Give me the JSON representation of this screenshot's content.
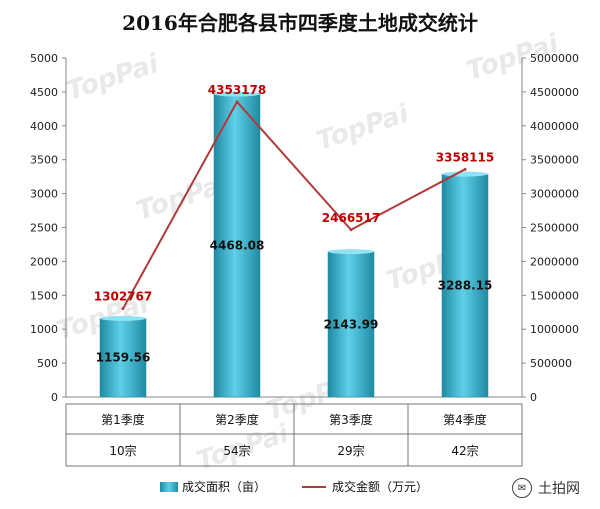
{
  "chart_data": {
    "type": "bar",
    "title": "2016年合肥各县市四季度土地成交统计",
    "categories": [
      "第1季度",
      "第2季度",
      "第3季度",
      "第4季度"
    ],
    "counts": [
      "10宗",
      "54宗",
      "29宗",
      "42宗"
    ],
    "series": [
      {
        "name": "成交面积（亩）",
        "type": "bar",
        "axis": "left",
        "values": [
          1159.56,
          4468.08,
          2143.99,
          3288.15
        ],
        "labels": [
          "1159.56",
          "4468.08",
          "2143.99",
          "3288.15"
        ]
      },
      {
        "name": "成交金额（万元）",
        "type": "line",
        "axis": "right",
        "values": [
          1302767,
          4353178,
          2466517,
          3358115
        ],
        "labels": [
          "1302767",
          "4353178",
          "2466517",
          "3358115"
        ]
      }
    ],
    "y_left": {
      "min": 0,
      "max": 5000,
      "step": 500
    },
    "y_right": {
      "min": 0,
      "max": 5000000,
      "step": 500000
    },
    "grid": false,
    "legend_position": "bottom",
    "colors": {
      "bar": "#3fb6cf",
      "bar_dark": "#1f8aa3",
      "line": "#b03a3a",
      "line_label": "#c00000"
    }
  },
  "brand": {
    "name": "土拍网",
    "icon": "chat-bubble-icon"
  },
  "watermark": {
    "text": "TopPai"
  }
}
